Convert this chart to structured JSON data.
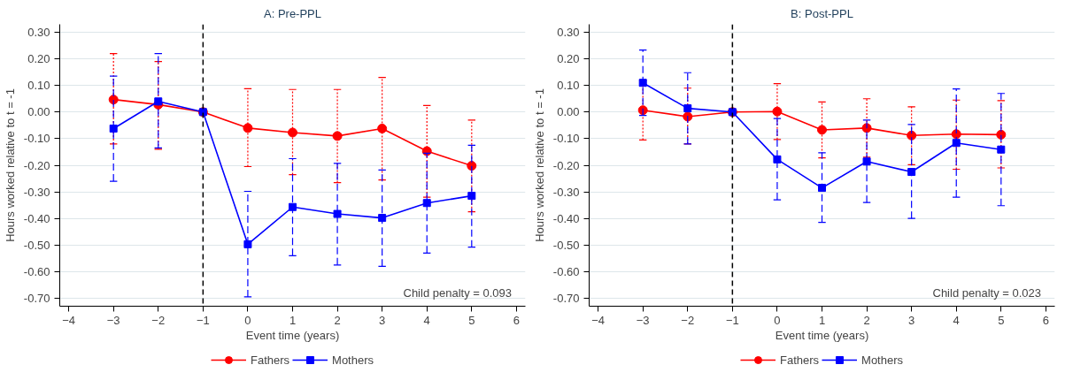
{
  "chart_data": [
    {
      "type": "line",
      "title": "A: Pre-PPL",
      "xlabel": "Event time (years)",
      "ylabel": "Hours worked relative to t = -1",
      "xlim": [
        -4.2,
        6.2
      ],
      "xticks": [
        -4,
        -3,
        -2,
        -1,
        0,
        1,
        2,
        3,
        4,
        5,
        6
      ],
      "ylim": [
        -0.73,
        0.33
      ],
      "yticks": [
        {
          "value": 0.3,
          "label": "0.30"
        },
        {
          "value": 0.2,
          "label": "0.20"
        },
        {
          "value": 0.1,
          "label": "0.10"
        },
        {
          "value": 0,
          "label": "0.00"
        },
        {
          "value": -0.1,
          "label": "-0.10"
        },
        {
          "value": -0.2,
          "label": "-0.20"
        },
        {
          "value": -0.3,
          "label": "-0.30"
        },
        {
          "value": -0.4,
          "label": "-0.40"
        },
        {
          "value": -0.5,
          "label": "-0.50"
        },
        {
          "value": -0.6,
          "label": "-0.60"
        },
        {
          "value": -0.7,
          "label": "-0.70"
        }
      ],
      "grid": "y",
      "legend": "bottom",
      "x": [
        -3,
        -2,
        -1,
        0,
        1,
        2,
        3,
        4,
        5
      ],
      "series": [
        {
          "name": "Fathers",
          "color": "#ff0000",
          "marker": "circle",
          "values": [
            0.047,
            0.028,
            0,
            -0.06,
            -0.077,
            -0.09,
            -0.062,
            -0.147,
            -0.202
          ],
          "errors": [
            [
              -0.12,
              0.22
            ],
            [
              -0.14,
              0.19
            ],
            null,
            [
              -0.205,
              0.088
            ],
            [
              -0.235,
              0.085
            ],
            [
              -0.265,
              0.085
            ],
            [
              -0.255,
              0.13
            ],
            [
              -0.32,
              0.025
            ],
            [
              -0.375,
              -0.03
            ]
          ]
        },
        {
          "name": "Mothers",
          "color": "#0000ff",
          "marker": "square",
          "values": [
            -0.062,
            0.04,
            0,
            -0.497,
            -0.357,
            -0.383,
            -0.398,
            -0.342,
            -0.315
          ],
          "errors": [
            [
              -0.26,
              0.135
            ],
            [
              -0.135,
              0.22
            ],
            null,
            [
              -0.695,
              -0.298
            ],
            [
              -0.54,
              -0.175
            ],
            [
              -0.575,
              -0.193
            ],
            [
              -0.58,
              -0.218
            ],
            [
              -0.53,
              -0.155
            ],
            [
              -0.508,
              -0.125
            ]
          ]
        }
      ],
      "ref_lines": [
        {
          "axis": "x",
          "value": -1,
          "color": "#000000",
          "line_style": "dashed"
        }
      ],
      "annotations": [
        "Child penalty = 0.093"
      ]
    },
    {
      "type": "line",
      "title": "B: Post-PPL",
      "xlabel": "Event time (years)",
      "ylabel": "Hours worked relative to t = -1",
      "xlim": [
        -4.2,
        6.2
      ],
      "xticks": [
        -4,
        -3,
        -2,
        -1,
        0,
        1,
        2,
        3,
        4,
        5,
        6
      ],
      "ylim": [
        -0.73,
        0.33
      ],
      "yticks": [
        {
          "value": 0.3,
          "label": "0.30"
        },
        {
          "value": 0.2,
          "label": "0.20"
        },
        {
          "value": 0.1,
          "label": "0.10"
        },
        {
          "value": 0,
          "label": "0.00"
        },
        {
          "value": -0.1,
          "label": "-0.10"
        },
        {
          "value": -0.2,
          "label": "-0.20"
        },
        {
          "value": -0.3,
          "label": "-0.30"
        },
        {
          "value": -0.4,
          "label": "-0.40"
        },
        {
          "value": -0.5,
          "label": "-0.50"
        },
        {
          "value": -0.6,
          "label": "-0.60"
        },
        {
          "value": -0.7,
          "label": "-0.70"
        }
      ],
      "grid": "y",
      "legend": "bottom",
      "x": [
        -3,
        -2,
        -1,
        0,
        1,
        2,
        3,
        4,
        5
      ],
      "series": [
        {
          "name": "Fathers",
          "color": "#ff0000",
          "marker": "circle",
          "values": [
            0.007,
            -0.017,
            0,
            0.002,
            -0.067,
            -0.06,
            -0.088,
            -0.083,
            -0.085
          ],
          "errors": [
            [
              -0.105,
              0.12
            ],
            [
              -0.12,
              0.09
            ],
            null,
            [
              -0.103,
              0.107
            ],
            [
              -0.172,
              0.038
            ],
            [
              -0.17,
              0.05
            ],
            [
              -0.198,
              0.02
            ],
            [
              -0.215,
              0.045
            ],
            [
              -0.21,
              0.043
            ]
          ]
        },
        {
          "name": "Mothers",
          "color": "#0000ff",
          "marker": "square",
          "values": [
            0.11,
            0.014,
            0,
            -0.178,
            -0.285,
            -0.186,
            -0.225,
            -0.116,
            -0.141
          ],
          "errors": [
            [
              -0.013,
              0.233
            ],
            [
              -0.12,
              0.148
            ],
            null,
            [
              -0.33,
              -0.024
            ],
            [
              -0.415,
              -0.153
            ],
            [
              -0.34,
              -0.03
            ],
            [
              -0.4,
              -0.047
            ],
            [
              -0.32,
              0.087
            ],
            [
              -0.352,
              0.07
            ]
          ]
        }
      ],
      "ref_lines": [
        {
          "axis": "x",
          "value": -1,
          "color": "#000000",
          "line_style": "dashed"
        }
      ],
      "annotations": [
        "Child penalty = 0.023"
      ]
    }
  ]
}
